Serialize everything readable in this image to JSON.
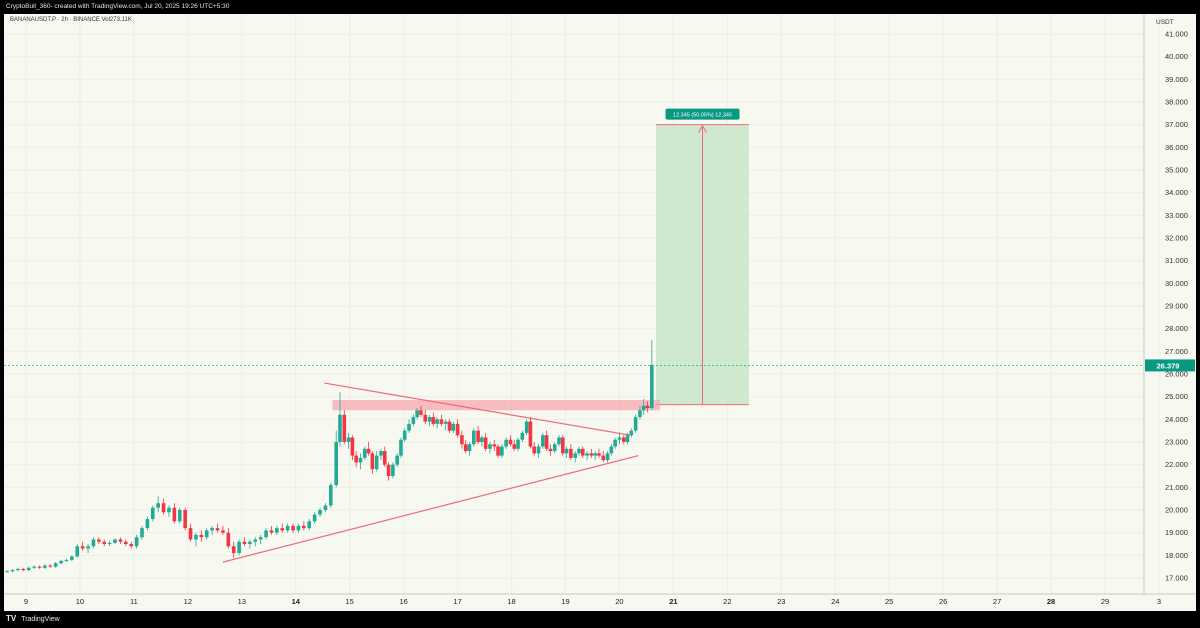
{
  "header": {
    "attribution": "CryptoBull_360- created with TradingView.com, Jul 20, 2025 19:26 UTC+5:30"
  },
  "symbol_line": "BANANAUSDT.P · 2h · BINANCE  Vol273.11K",
  "footer": {
    "logo": "TV",
    "brand": "TradingView"
  },
  "colors": {
    "up": "#22ab94",
    "down": "#f23645",
    "trendline": "#f06a78",
    "target_zone": "#c8e6c9",
    "price_tag": "#089981"
  },
  "chart_data": {
    "type": "candlestick",
    "title": "",
    "ylabel": "USDT",
    "ylim": [
      16.3,
      41.9
    ],
    "y_ticks": [
      "17.000",
      "18.000",
      "19.000",
      "20.000",
      "21.000",
      "22.000",
      "23.000",
      "24.000",
      "25.000",
      "26.000",
      "27.000",
      "28.000",
      "29.000",
      "30.000",
      "31.000",
      "32.000",
      "33.000",
      "34.000",
      "35.000",
      "36.000",
      "37.000",
      "38.000",
      "39.000",
      "40.000",
      "41.000"
    ],
    "x_ticks": [
      "9",
      "10",
      "11",
      "12",
      "13",
      "14",
      "15",
      "16",
      "17",
      "18",
      "19",
      "20",
      "21",
      "22",
      "23",
      "24",
      "25",
      "26",
      "27",
      "28",
      "29",
      "3"
    ],
    "x_range_days": [
      8.6,
      30.0
    ],
    "last_price": "26.379",
    "candles": [
      [
        8.65,
        17.3,
        17.35,
        17.25,
        17.3
      ],
      [
        8.75,
        17.3,
        17.4,
        17.25,
        17.35
      ],
      [
        8.85,
        17.35,
        17.45,
        17.3,
        17.4
      ],
      [
        8.95,
        17.4,
        17.45,
        17.3,
        17.35
      ],
      [
        9.05,
        17.35,
        17.5,
        17.3,
        17.45
      ],
      [
        9.15,
        17.45,
        17.55,
        17.4,
        17.5
      ],
      [
        9.25,
        17.5,
        17.55,
        17.4,
        17.45
      ],
      [
        9.35,
        17.45,
        17.6,
        17.4,
        17.55
      ],
      [
        9.45,
        17.55,
        17.6,
        17.45,
        17.5
      ],
      [
        9.55,
        17.5,
        17.7,
        17.45,
        17.65
      ],
      [
        9.65,
        17.65,
        17.8,
        17.6,
        17.75
      ],
      [
        9.75,
        17.75,
        17.85,
        17.7,
        17.8
      ],
      [
        9.85,
        17.8,
        18.0,
        17.75,
        17.95
      ],
      [
        9.95,
        17.95,
        18.5,
        17.9,
        18.4
      ],
      [
        10.05,
        18.4,
        18.6,
        18.2,
        18.3
      ],
      [
        10.15,
        18.3,
        18.5,
        18.1,
        18.4
      ],
      [
        10.25,
        18.4,
        18.8,
        18.3,
        18.7
      ],
      [
        10.35,
        18.7,
        18.8,
        18.5,
        18.6
      ],
      [
        10.45,
        18.6,
        18.7,
        18.4,
        18.5
      ],
      [
        10.55,
        18.5,
        18.65,
        18.4,
        18.55
      ],
      [
        10.65,
        18.55,
        18.75,
        18.5,
        18.7
      ],
      [
        10.75,
        18.7,
        18.8,
        18.5,
        18.6
      ],
      [
        10.85,
        18.6,
        18.7,
        18.4,
        18.5
      ],
      [
        10.95,
        18.5,
        18.6,
        18.3,
        18.4
      ],
      [
        11.05,
        18.4,
        18.9,
        18.3,
        18.8
      ],
      [
        11.15,
        18.8,
        19.3,
        18.7,
        19.2
      ],
      [
        11.25,
        19.2,
        19.7,
        19.1,
        19.6
      ],
      [
        11.35,
        19.6,
        20.2,
        19.5,
        20.1
      ],
      [
        11.45,
        20.1,
        20.6,
        19.9,
        20.3
      ],
      [
        11.55,
        20.3,
        20.5,
        19.8,
        19.9
      ],
      [
        11.65,
        19.9,
        20.2,
        19.7,
        20.1
      ],
      [
        11.75,
        20.1,
        20.3,
        19.4,
        19.5
      ],
      [
        11.85,
        19.5,
        20.1,
        19.4,
        20.0
      ],
      [
        11.95,
        20.0,
        20.1,
        19.1,
        19.2
      ],
      [
        12.05,
        19.2,
        19.4,
        18.6,
        18.7
      ],
      [
        12.15,
        18.7,
        19.0,
        18.4,
        18.9
      ],
      [
        12.25,
        18.9,
        19.1,
        18.6,
        18.8
      ],
      [
        12.35,
        18.8,
        19.2,
        18.7,
        19.1
      ],
      [
        12.45,
        19.1,
        19.3,
        18.9,
        19.2
      ],
      [
        12.55,
        19.2,
        19.4,
        19.0,
        19.1
      ],
      [
        12.65,
        19.1,
        19.3,
        18.9,
        19.0
      ],
      [
        12.75,
        19.0,
        19.2,
        18.3,
        18.4
      ],
      [
        12.85,
        18.4,
        18.6,
        17.9,
        18.1
      ],
      [
        12.95,
        18.1,
        18.7,
        18.0,
        18.6
      ],
      [
        13.05,
        18.6,
        18.8,
        18.4,
        18.5
      ],
      [
        13.15,
        18.5,
        18.7,
        18.3,
        18.6
      ],
      [
        13.25,
        18.6,
        18.8,
        18.4,
        18.7
      ],
      [
        13.35,
        18.7,
        18.9,
        18.5,
        18.8
      ],
      [
        13.45,
        18.8,
        19.2,
        18.7,
        19.1
      ],
      [
        13.55,
        19.1,
        19.3,
        18.9,
        19.0
      ],
      [
        13.65,
        19.0,
        19.3,
        18.9,
        19.2
      ],
      [
        13.75,
        19.2,
        19.4,
        19.0,
        19.1
      ],
      [
        13.85,
        19.1,
        19.4,
        19.0,
        19.3
      ],
      [
        13.95,
        19.3,
        19.4,
        19.0,
        19.1
      ],
      [
        14.05,
        19.1,
        19.4,
        19.0,
        19.3
      ],
      [
        14.15,
        19.3,
        19.5,
        19.1,
        19.2
      ],
      [
        14.25,
        19.2,
        19.6,
        19.1,
        19.5
      ],
      [
        14.35,
        19.5,
        19.9,
        19.4,
        19.8
      ],
      [
        14.45,
        19.8,
        20.1,
        19.7,
        20.0
      ],
      [
        14.55,
        20.0,
        20.3,
        19.9,
        20.2
      ],
      [
        14.65,
        20.2,
        21.2,
        20.1,
        21.1
      ],
      [
        14.75,
        21.1,
        23.5,
        21.0,
        23.0
      ],
      [
        14.82,
        23.0,
        25.2,
        22.8,
        24.2
      ],
      [
        14.9,
        24.2,
        24.4,
        22.9,
        23.0
      ],
      [
        14.98,
        23.0,
        23.4,
        22.7,
        23.2
      ],
      [
        15.05,
        23.2,
        23.3,
        22.2,
        22.4
      ],
      [
        15.12,
        22.4,
        22.6,
        21.9,
        22.1
      ],
      [
        15.2,
        22.1,
        22.5,
        21.8,
        22.3
      ],
      [
        15.28,
        22.3,
        22.8,
        22.2,
        22.7
      ],
      [
        15.35,
        22.7,
        23.0,
        22.4,
        22.5
      ],
      [
        15.42,
        22.5,
        22.6,
        21.6,
        21.8
      ],
      [
        15.5,
        21.8,
        22.6,
        21.7,
        22.4
      ],
      [
        15.58,
        22.4,
        22.7,
        22.2,
        22.6
      ],
      [
        15.65,
        22.6,
        22.8,
        21.9,
        22.0
      ],
      [
        15.72,
        22.0,
        22.1,
        21.3,
        21.5
      ],
      [
        15.8,
        21.5,
        22.1,
        21.4,
        22.0
      ],
      [
        15.88,
        22.0,
        22.5,
        21.9,
        22.4
      ],
      [
        15.95,
        22.4,
        23.2,
        22.3,
        23.1
      ],
      [
        16.02,
        23.1,
        23.6,
        23.0,
        23.5
      ],
      [
        16.1,
        23.5,
        24.0,
        23.4,
        23.8
      ],
      [
        16.18,
        23.8,
        24.2,
        23.7,
        24.1
      ],
      [
        16.25,
        24.1,
        24.5,
        24.0,
        24.4
      ],
      [
        16.32,
        24.4,
        24.6,
        24.1,
        24.2
      ],
      [
        16.4,
        24.2,
        24.4,
        23.8,
        23.9
      ],
      [
        16.48,
        23.9,
        24.2,
        23.7,
        24.1
      ],
      [
        16.55,
        24.1,
        24.3,
        23.7,
        23.8
      ],
      [
        16.62,
        23.8,
        24.1,
        23.6,
        24.0
      ],
      [
        16.7,
        24.0,
        24.2,
        23.7,
        23.8
      ],
      [
        16.78,
        23.8,
        24.0,
        23.5,
        23.9
      ],
      [
        16.85,
        23.9,
        24.0,
        23.4,
        23.5
      ],
      [
        16.92,
        23.5,
        23.9,
        23.4,
        23.8
      ],
      [
        17.0,
        23.8,
        24.0,
        23.2,
        23.3
      ],
      [
        17.08,
        23.3,
        23.5,
        22.7,
        22.9
      ],
      [
        17.15,
        22.9,
        23.1,
        22.5,
        22.6
      ],
      [
        17.22,
        22.6,
        23.0,
        22.4,
        22.9
      ],
      [
        17.3,
        22.9,
        23.6,
        22.8,
        23.5
      ],
      [
        17.38,
        23.5,
        23.7,
        22.9,
        23.0
      ],
      [
        17.45,
        23.0,
        23.3,
        22.8,
        23.2
      ],
      [
        17.52,
        23.2,
        23.4,
        22.6,
        22.7
      ],
      [
        17.6,
        22.7,
        23.0,
        22.5,
        22.9
      ],
      [
        17.68,
        22.9,
        23.1,
        22.6,
        22.8
      ],
      [
        17.75,
        22.8,
        22.9,
        22.3,
        22.4
      ],
      [
        17.82,
        22.4,
        22.9,
        22.3,
        22.8
      ],
      [
        17.9,
        22.8,
        23.2,
        22.7,
        23.1
      ],
      [
        17.98,
        23.1,
        23.3,
        22.8,
        22.9
      ],
      [
        18.05,
        22.9,
        23.1,
        22.6,
        22.7
      ],
      [
        18.12,
        22.7,
        23.2,
        22.6,
        23.1
      ],
      [
        18.2,
        23.1,
        23.5,
        23.0,
        23.4
      ],
      [
        18.28,
        23.4,
        24.0,
        23.3,
        23.9
      ],
      [
        18.35,
        23.9,
        24.1,
        22.7,
        22.8
      ],
      [
        18.42,
        22.8,
        23.0,
        22.4,
        22.5
      ],
      [
        18.5,
        22.5,
        22.9,
        22.3,
        22.8
      ],
      [
        18.58,
        22.8,
        23.4,
        22.7,
        23.3
      ],
      [
        18.65,
        23.3,
        23.5,
        22.6,
        22.7
      ],
      [
        18.72,
        22.7,
        22.9,
        22.4,
        22.6
      ],
      [
        18.8,
        22.6,
        23.0,
        22.5,
        22.9
      ],
      [
        18.88,
        22.9,
        23.3,
        22.8,
        23.2
      ],
      [
        18.95,
        23.2,
        23.3,
        22.4,
        22.5
      ],
      [
        19.02,
        22.5,
        22.8,
        22.3,
        22.7
      ],
      [
        19.1,
        22.7,
        22.9,
        22.2,
        22.3
      ],
      [
        19.18,
        22.3,
        22.6,
        22.1,
        22.5
      ],
      [
        19.25,
        22.5,
        22.8,
        22.4,
        22.7
      ],
      [
        19.32,
        22.7,
        22.8,
        22.3,
        22.4
      ],
      [
        19.4,
        22.4,
        22.6,
        22.2,
        22.5
      ],
      [
        19.48,
        22.5,
        22.7,
        22.3,
        22.4
      ],
      [
        19.55,
        22.4,
        22.6,
        22.2,
        22.5
      ],
      [
        19.62,
        22.5,
        22.7,
        22.3,
        22.4
      ],
      [
        19.7,
        22.4,
        22.6,
        22.1,
        22.2
      ],
      [
        19.78,
        22.2,
        22.6,
        22.1,
        22.5
      ],
      [
        19.85,
        22.5,
        22.9,
        22.4,
        22.8
      ],
      [
        19.92,
        22.8,
        23.2,
        22.7,
        23.1
      ],
      [
        20.0,
        23.1,
        23.4,
        22.9,
        23.2
      ],
      [
        20.08,
        23.2,
        23.3,
        22.9,
        23.0
      ],
      [
        20.15,
        23.0,
        23.4,
        22.9,
        23.3
      ],
      [
        20.22,
        23.3,
        23.6,
        23.2,
        23.5
      ],
      [
        20.3,
        23.5,
        24.2,
        23.4,
        24.1
      ],
      [
        20.38,
        24.1,
        24.6,
        24.0,
        24.4
      ],
      [
        20.45,
        24.4,
        24.9,
        24.2,
        24.6
      ],
      [
        20.52,
        24.6,
        24.8,
        24.3,
        24.5
      ],
      [
        20.6,
        24.5,
        27.5,
        24.4,
        26.4
      ]
    ],
    "annotations": {
      "resistance_zone": {
        "x0": 14.68,
        "x1": 20.75,
        "y0": 24.4,
        "y1": 24.85
      },
      "descending_trendline": {
        "x0": 14.53,
        "y0": 25.6,
        "x1": 20.2,
        "y1": 23.3
      },
      "ascending_trendline": {
        "x0": 12.65,
        "y0": 17.7,
        "x1": 20.35,
        "y1": 22.4
      },
      "target_box": {
        "x0": 20.68,
        "x1": 22.4,
        "y0": 24.65,
        "y1": 37.0
      },
      "target_label": "12.345 (50.05%) 12,345"
    }
  }
}
